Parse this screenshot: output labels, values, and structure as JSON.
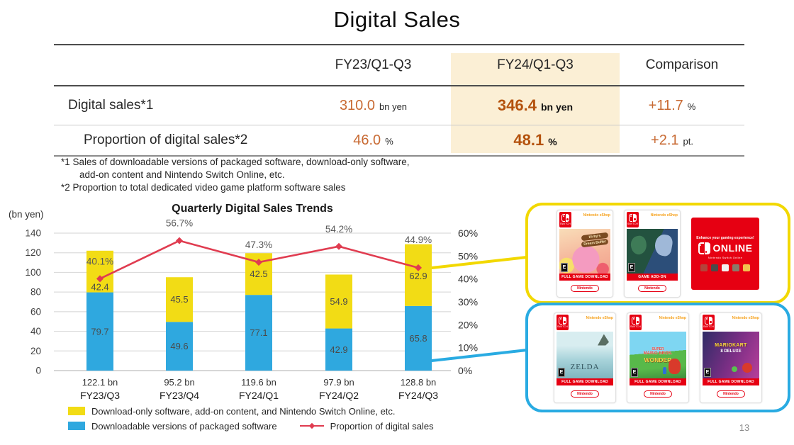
{
  "page": {
    "title": "Digital Sales",
    "page_number": "13"
  },
  "colors": {
    "accent_orange": "#C86A33",
    "accent_orange_bold": "#B4520D",
    "highlight": "#FBEFD5",
    "nintendo_red": "#E60012",
    "eshop_orange": "#F6A11B",
    "box_yellow_border": "#F2D800",
    "box_blue_border": "#29ABE2",
    "bar_blue": "#2FA8DF",
    "bar_yellow": "#F2DC15",
    "line_red": "#E03C50"
  },
  "table": {
    "col_fy23": "FY23/Q1-Q3",
    "col_fy24": "FY24/Q1-Q3",
    "col_comparison": "Comparison",
    "rows": [
      {
        "label": "Digital sales*1",
        "fy23_value": "310.0",
        "fy23_unit": "bn yen",
        "fy24_value": "346.4",
        "fy24_unit": "bn yen",
        "cmp_value": "+11.7",
        "cmp_unit": "%"
      },
      {
        "label": "Proportion of digital sales*2",
        "fy23_value": "46.0",
        "fy23_unit": "%",
        "fy24_value": "48.1",
        "fy24_unit": "%",
        "cmp_value": "+2.1",
        "cmp_unit": "pt."
      }
    ]
  },
  "footnotes": [
    "*1 Sales of downloadable versions of packaged software, download-only software,",
    "add-on content and Nintendo Switch Online, etc.",
    "*2 Proportion to total dedicated video game platform software sales"
  ],
  "chart_data": {
    "type": "stacked-bar+line",
    "title": "Quarterly Digital Sales Trends",
    "left_axis": {
      "label": "(bn yen)",
      "min": 0,
      "max": 140,
      "step": 20
    },
    "right_axis": {
      "min": 0,
      "max": 60,
      "step": 10,
      "suffix": "%"
    },
    "categories": [
      "FY23/Q3",
      "FY23/Q4",
      "FY24/Q1",
      "FY24/Q2",
      "FY24/Q3"
    ],
    "totals": [
      "122.1 bn",
      "95.2 bn",
      "119.6 bn",
      "97.9 bn",
      "128.8 bn"
    ],
    "series": [
      {
        "name": "Downloadable versions of packaged software",
        "color": "#2FA8DF",
        "values": [
          79.7,
          49.6,
          77.1,
          42.9,
          65.8
        ]
      },
      {
        "name": "Download-only software, add-on content, and Nintendo Switch Online, etc.",
        "color": "#F2DC15",
        "values": [
          42.4,
          45.5,
          42.5,
          54.9,
          62.9
        ]
      }
    ],
    "line": {
      "name": "Proportion of digital sales",
      "color": "#E03C50",
      "values": [
        40.1,
        56.7,
        47.3,
        54.2,
        44.9
      ],
      "labels": [
        "40.1%",
        "56.7%",
        "47.3%",
        "54.2%",
        "44.9%"
      ]
    },
    "legend_position": "bottom",
    "grid": true
  },
  "promo": {
    "eshop_label": "Nintendo eShop",
    "pill_label": "Nintendo",
    "switch_label": "SWITCH",
    "yellow_box": {
      "cards": [
        {
          "kind": "game",
          "name": "kirbys-dream-buffet",
          "art": "kirby",
          "title_lines": [
            "Kirby's",
            "Dream Buffet"
          ],
          "band": "FULL GAME DOWNLOAD",
          "rating": "E"
        },
        {
          "kind": "game",
          "name": "pokemon-game-add-on",
          "art": "pokemon",
          "title_lines": [],
          "band": "GAME ADD-ON",
          "rating": "E"
        },
        {
          "kind": "nso",
          "name": "nintendo-switch-online",
          "line1": "Enhance your gaming experience!",
          "logo_text": "ONLINE",
          "line3": "Nintendo Switch Online"
        }
      ]
    },
    "blue_box": {
      "cards": [
        {
          "kind": "game",
          "name": "zelda-tears-of-the-kingdom",
          "art": "zelda",
          "title_lines": [
            "ZELDA"
          ],
          "band": "FULL GAME DOWNLOAD",
          "rating": "E"
        },
        {
          "kind": "game",
          "name": "super-mario-bros-wonder",
          "art": "wonder",
          "title_lines": [
            "SUPER",
            "MARIO BROS.",
            "WONDER"
          ],
          "band": "FULL GAME DOWNLOAD",
          "rating": "E"
        },
        {
          "kind": "game",
          "name": "mario-kart-8-deluxe",
          "art": "mk8",
          "title_lines": [
            "MARIOKART",
            "8 DELUXE"
          ],
          "band": "FULL GAME DOWNLOAD",
          "rating": "E"
        }
      ]
    }
  }
}
